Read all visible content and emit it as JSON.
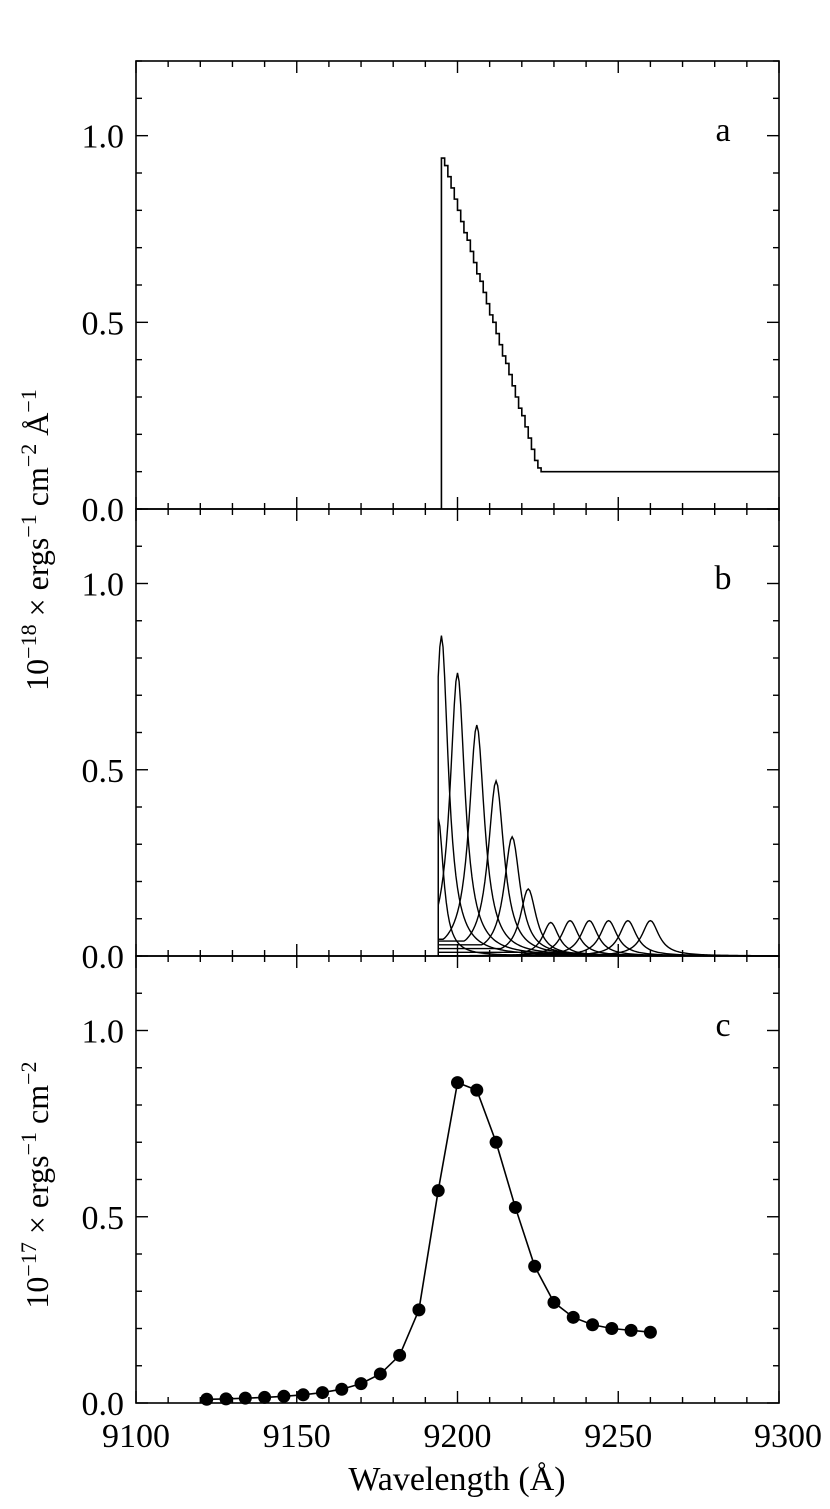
{
  "figure": {
    "xlabel": "Wavelength (Å)",
    "ylabel_top": "10^−18 × ergs^−1 cm^−2 Å^−1",
    "ylabel_bottom": "10^−17 × ergs^−1 cm^−2",
    "xticks": [
      "9100",
      "9150",
      "9200",
      "9250",
      "9300"
    ],
    "yticks": [
      "0.0",
      "0.5",
      "1.0"
    ]
  },
  "chart_data": [
    {
      "type": "line",
      "panel_label": "a",
      "xlim": [
        9100,
        9300
      ],
      "ylim": [
        0,
        1.2
      ],
      "grid": false,
      "series": [
        {
          "style": "step",
          "x": [
            9195,
            9196,
            9197,
            9198,
            9199,
            9200,
            9201,
            9202,
            9203,
            9204,
            9205,
            9206,
            9207,
            9208,
            9209,
            9210,
            9211,
            9212,
            9213,
            9214,
            9215,
            9216,
            9217,
            9218,
            9219,
            9220,
            9221,
            9222,
            9223,
            9224,
            9225,
            9226,
            9300
          ],
          "y": [
            0.94,
            0.92,
            0.89,
            0.86,
            0.83,
            0.8,
            0.77,
            0.74,
            0.72,
            0.69,
            0.66,
            0.63,
            0.61,
            0.58,
            0.55,
            0.52,
            0.5,
            0.47,
            0.44,
            0.41,
            0.39,
            0.36,
            0.33,
            0.3,
            0.27,
            0.25,
            0.22,
            0.19,
            0.16,
            0.13,
            0.11,
            0.1,
            0.1
          ]
        }
      ]
    },
    {
      "type": "line",
      "panel_label": "b",
      "xlim": [
        9100,
        9300
      ],
      "ylim": [
        0,
        1.2
      ],
      "grid": false,
      "edge": 9194,
      "series": [
        {
          "x0": 9194,
          "peak": 0.37,
          "width": 2.0,
          "tail": 0.06
        },
        {
          "x0": 9195,
          "peak": 0.86,
          "width": 2.6,
          "tail": 0.05
        },
        {
          "x0": 9200,
          "peak": 0.76,
          "width": 2.8,
          "tail": 0.05
        },
        {
          "x0": 9206,
          "peak": 0.62,
          "width": 2.9,
          "tail": 0.045
        },
        {
          "x0": 9212,
          "peak": 0.47,
          "width": 3.0,
          "tail": 0.04
        },
        {
          "x0": 9217,
          "peak": 0.32,
          "width": 3.0,
          "tail": 0.03
        },
        {
          "x0": 9222,
          "peak": 0.18,
          "width": 3.0,
          "tail": 0.02
        },
        {
          "x0": 9229,
          "peak": 0.09,
          "width": 3.0,
          "tail": 0.01
        },
        {
          "x0": 9235,
          "peak": 0.095,
          "width": 3.2,
          "tail": 0.0
        },
        {
          "x0": 9241,
          "peak": 0.095,
          "width": 3.2,
          "tail": 0.0
        },
        {
          "x0": 9247,
          "peak": 0.095,
          "width": 3.2,
          "tail": 0.0
        },
        {
          "x0": 9253,
          "peak": 0.095,
          "width": 3.2,
          "tail": 0.0
        },
        {
          "x0": 9260,
          "peak": 0.095,
          "width": 3.2,
          "tail": 0.0
        }
      ]
    },
    {
      "type": "line",
      "panel_label": "c",
      "xlim": [
        9100,
        9300
      ],
      "ylim": [
        0,
        1.2
      ],
      "grid": false,
      "markers": "filled-circle",
      "series": [
        {
          "x": [
            9122,
            9128,
            9134,
            9140,
            9146,
            9152,
            9158,
            9164,
            9170,
            9176,
            9182,
            9188,
            9194,
            9200,
            9206,
            9212,
            9218,
            9224,
            9230,
            9236,
            9242,
            9248,
            9254,
            9260
          ],
          "y": [
            0.01,
            0.011,
            0.013,
            0.015,
            0.018,
            0.022,
            0.028,
            0.037,
            0.052,
            0.078,
            0.128,
            0.25,
            0.57,
            0.86,
            0.84,
            0.7,
            0.525,
            0.367,
            0.27,
            0.23,
            0.21,
            0.2,
            0.195,
            0.19
          ]
        }
      ]
    }
  ]
}
